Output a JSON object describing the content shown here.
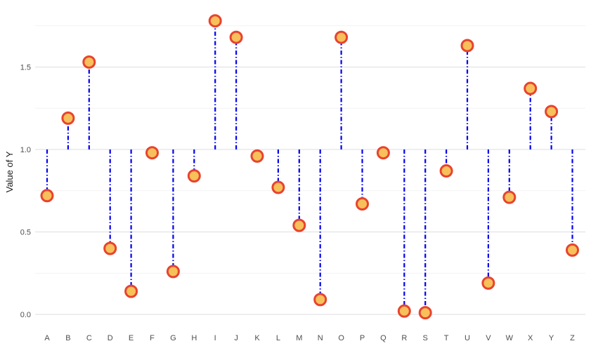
{
  "chart_data": {
    "type": "lollipop",
    "baseline": 1.0,
    "ylabel": "Value of Y",
    "xlabel": "",
    "ylim": [
      -0.03,
      1.8
    ],
    "yticks": [
      0.0,
      0.5,
      1.0,
      1.5
    ],
    "ytick_labels": [
      "0.0",
      "0.5",
      "1.0",
      "1.5"
    ],
    "grid": true,
    "colors": {
      "stem": "#0000ee",
      "point_fill": "#f7c05a",
      "point_outline": "#e8432e",
      "grid": "#dedede"
    },
    "categories": [
      "A",
      "B",
      "C",
      "D",
      "E",
      "F",
      "G",
      "H",
      "I",
      "J",
      "K",
      "L",
      "M",
      "N",
      "O",
      "P",
      "Q",
      "R",
      "S",
      "T",
      "U",
      "V",
      "W",
      "X",
      "Y",
      "Z"
    ],
    "values": [
      0.72,
      1.19,
      1.53,
      0.4,
      0.14,
      0.98,
      0.26,
      0.84,
      1.78,
      1.68,
      0.96,
      0.77,
      0.54,
      0.09,
      1.68,
      0.67,
      0.98,
      0.02,
      0.01,
      0.87,
      1.63,
      0.19,
      0.71,
      1.37,
      1.23,
      0.39
    ]
  }
}
